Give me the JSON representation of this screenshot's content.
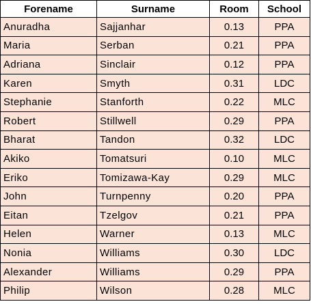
{
  "table": {
    "headers": [
      "Forename",
      "Surname",
      "Room",
      "School"
    ],
    "rows": [
      [
        "Anuradha",
        "Sajjanhar",
        "0.13",
        "PPA"
      ],
      [
        "Maria",
        "Serban",
        "0.21",
        "PPA"
      ],
      [
        "Adriana",
        "Sinclair",
        "0.12",
        "PPA"
      ],
      [
        "Karen",
        "Smyth",
        "0.31",
        "LDC"
      ],
      [
        "Stephanie",
        "Stanforth",
        "0.22",
        "MLC"
      ],
      [
        "Robert",
        "Stillwell",
        "0.29",
        "PPA"
      ],
      [
        "Bharat",
        "Tandon",
        "0.32",
        "LDC"
      ],
      [
        "Akiko",
        "Tomatsuri",
        "0.10",
        "MLC"
      ],
      [
        "Eriko",
        "Tomizawa-Kay",
        "0.29",
        "MLC"
      ],
      [
        "John",
        "Turnpenny",
        "0.20",
        "PPA"
      ],
      [
        "Eitan",
        "Tzelgov",
        "0.21",
        "PPA"
      ],
      [
        "Helen",
        "Warner",
        "0.13",
        "MLC"
      ],
      [
        "Nonia",
        "Williams",
        "0.30",
        "LDC"
      ],
      [
        "Alexander",
        "Williams",
        "0.29",
        "PPA"
      ],
      [
        "Philip",
        "Wilson",
        "0.28",
        "MLC"
      ]
    ]
  },
  "colors": {
    "row_fill": "#fbe3d7",
    "header_fill": "#ffffff",
    "grid": "#000000"
  }
}
